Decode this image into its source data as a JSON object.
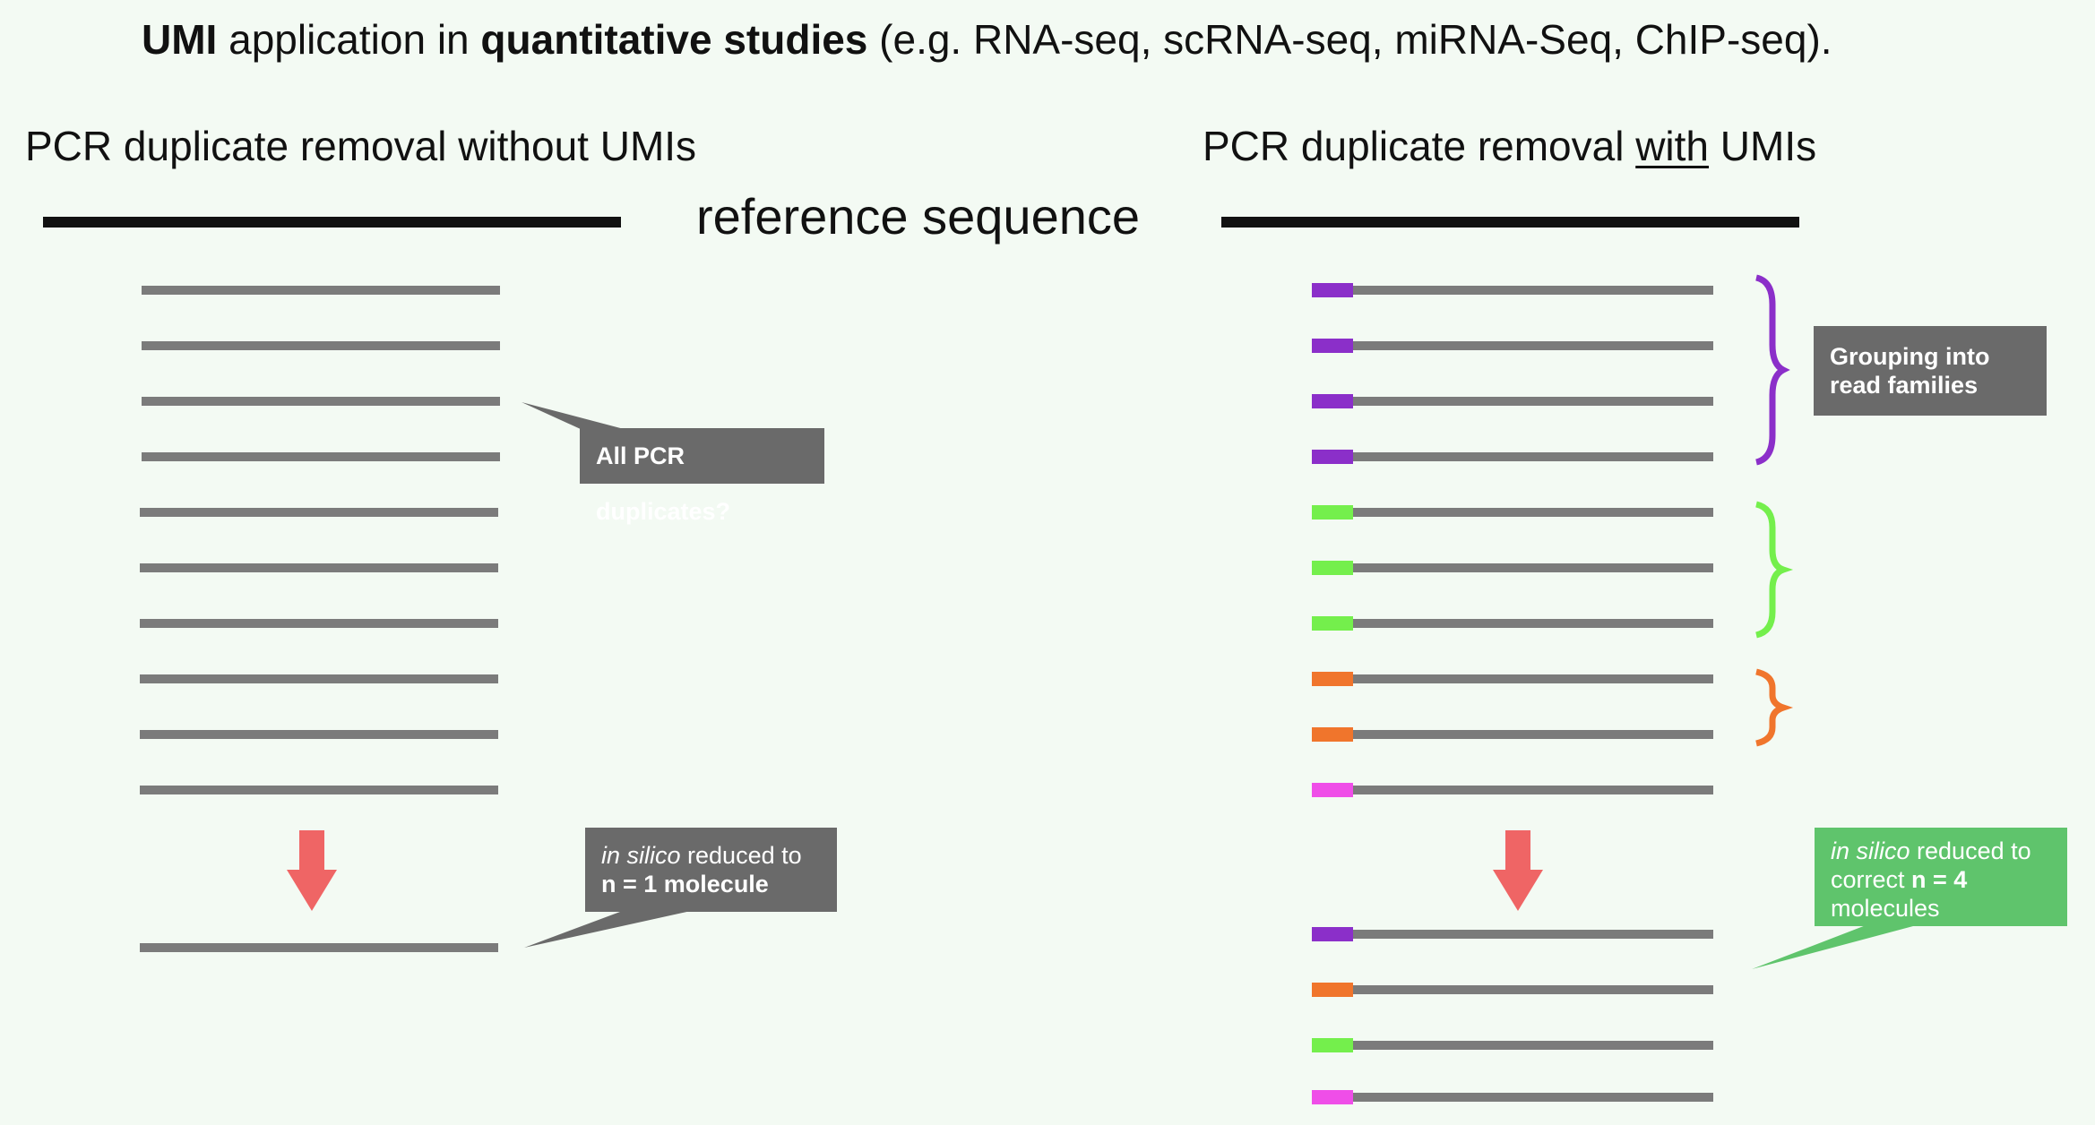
{
  "title": {
    "part1": "UMI",
    "part2": " application in ",
    "part3": "quantitative studies",
    "part4": " (e.g. RNA-seq, scRNA-seq, miRNA-Seq, ChIP-seq)."
  },
  "left_panel": {
    "heading": "PCR duplicate removal without UMIs",
    "callout_duplicates": "All PCR duplicates?",
    "callout_reduced": {
      "italic": "in silico",
      "rest": " reduced to",
      "bold": "n = 1 molecule"
    },
    "read_count": 10,
    "result_read_count": 1
  },
  "reference_label": "reference sequence",
  "right_panel": {
    "heading_before": "PCR duplicate removal ",
    "heading_underlined": "with",
    "heading_after": " UMIs",
    "callout_grouping": {
      "line1": "Grouping into",
      "line2": "read families"
    },
    "callout_reduced": {
      "italic": "in silico",
      "rest": " reduced to",
      "line2_plain": "correct ",
      "line2_bold": "n = 4",
      "line3": "molecules"
    },
    "families": [
      {
        "color": "#8b2fc9",
        "reads": 4
      },
      {
        "color": "#74ef4c",
        "reads": 3
      },
      {
        "color": "#f0752c",
        "reads": 2
      },
      {
        "color": "#ef4ee8",
        "reads": 1
      }
    ],
    "result_umis": [
      "#8b2fc9",
      "#f0752c",
      "#74ef4c",
      "#ef4ee8"
    ]
  },
  "colors": {
    "arrow": "#ef6565",
    "read": "#7b7b7b",
    "callout_gray": "#6a6a6a",
    "callout_green": "#5fc46c"
  }
}
